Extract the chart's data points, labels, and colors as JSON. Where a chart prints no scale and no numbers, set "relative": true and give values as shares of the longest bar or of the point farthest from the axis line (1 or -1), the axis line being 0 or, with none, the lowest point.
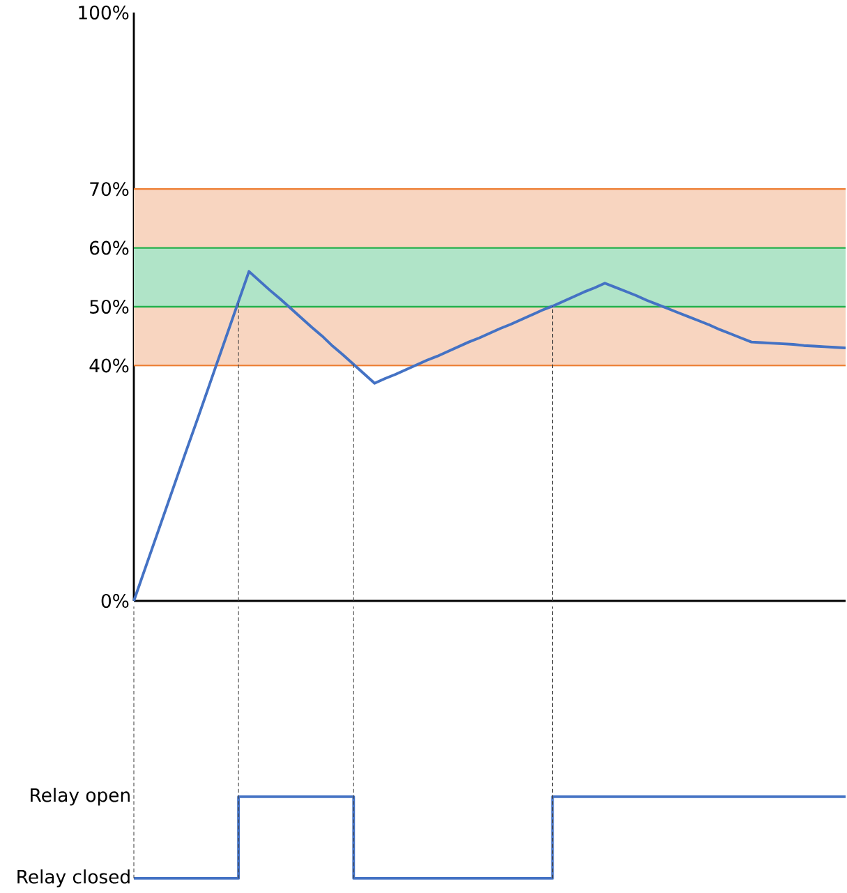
{
  "chart_data": [
    {
      "type": "line",
      "categories": [
        null,
        null,
        null,
        null,
        null,
        null,
        null,
        null,
        null,
        null,
        null,
        null,
        null,
        null,
        null,
        null,
        null,
        null,
        null,
        null,
        null,
        null,
        null,
        null,
        null,
        null,
        null,
        null,
        null,
        null,
        null,
        null,
        null,
        null,
        null,
        null,
        null,
        null,
        null,
        null,
        null,
        null,
        null,
        null,
        null,
        null,
        null,
        null,
        null,
        null,
        null,
        null,
        null,
        null,
        null,
        null,
        null,
        null,
        null,
        null,
        null,
        null,
        null,
        null,
        null,
        null,
        null,
        null,
        null
      ],
      "values": [
        0,
        5.1,
        10.2,
        15.3,
        20.4,
        25.5,
        30.5,
        35.6,
        40.7,
        45.8,
        50.9,
        56,
        54.4,
        52.8,
        51.3,
        49.7,
        48.1,
        46.5,
        45.0,
        43.3,
        41.8,
        40.2,
        38.6,
        37,
        37.8,
        38.5,
        39.3,
        40.1,
        40.9,
        41.6,
        42.4,
        43.2,
        44.0,
        44.7,
        45.5,
        46.3,
        47.0,
        47.8,
        48.6,
        49.4,
        50.1,
        50.9,
        51.7,
        52.5,
        53.2,
        54,
        53.3,
        52.6,
        51.9,
        51.1,
        50.4,
        49.7,
        49.0,
        48.3,
        47.6,
        46.9,
        46.1,
        45.4,
        44.7,
        44,
        43.9,
        43.8,
        43.7,
        43.6,
        43.4,
        43.3,
        43.2,
        43.1,
        43
      ],
      "color": "#4472c4",
      "ylim": [
        0,
        100
      ],
      "yticks": [
        {
          "value": 0,
          "label": "0%"
        },
        {
          "value": 40,
          "label": "40%"
        },
        {
          "value": 50,
          "label": "50%"
        },
        {
          "value": 60,
          "label": "60%"
        },
        {
          "value": 70,
          "label": "70%"
        },
        {
          "value": 100,
          "label": "100%"
        }
      ],
      "tick_labels": "y",
      "bands": [
        {
          "axis": "y",
          "from": 40,
          "to": 70,
          "color": "#f8d5c0"
        },
        {
          "axis": "y",
          "from": 50,
          "to": 60,
          "color": "#b0e4c8"
        }
      ],
      "ref_lines": [
        {
          "axis": "y",
          "value": 40,
          "color": "#ed7d31"
        },
        {
          "axis": "y",
          "value": 70,
          "color": "#ed7d31"
        },
        {
          "axis": "y",
          "value": 50,
          "color": "#22b14c"
        },
        {
          "axis": "y",
          "value": 60,
          "color": "#22b14c"
        }
      ]
    },
    {
      "type": "step",
      "categories": [
        null,
        null,
        null,
        null,
        null,
        null,
        null,
        null,
        null,
        null,
        null,
        null,
        null,
        null,
        null,
        null,
        null,
        null,
        null,
        null,
        null,
        null,
        null,
        null,
        null,
        null,
        null,
        null,
        null,
        null,
        null,
        null,
        null,
        null,
        null,
        null,
        null,
        null,
        null,
        null,
        null,
        null,
        null,
        null,
        null,
        null,
        null,
        null,
        null,
        null,
        null,
        null,
        null,
        null,
        null,
        null,
        null,
        null,
        null,
        null,
        null,
        null,
        null,
        null,
        null,
        null,
        null,
        null,
        null
      ],
      "values": [
        0,
        0,
        0,
        0,
        0,
        0,
        0,
        0,
        0,
        0,
        1,
        1,
        1,
        1,
        1,
        1,
        1,
        1,
        1,
        1,
        1,
        0,
        0,
        0,
        0,
        0,
        0,
        0,
        0,
        0,
        0,
        0,
        0,
        0,
        0,
        0,
        0,
        0,
        0,
        0,
        1,
        1,
        1,
        1,
        1,
        1,
        1,
        1,
        1,
        1,
        1,
        1,
        1,
        1,
        1,
        1,
        1,
        1,
        1,
        1,
        1,
        1,
        1,
        1,
        1,
        1,
        1,
        1,
        1
      ],
      "color": "#4472c4",
      "relative": true,
      "tick_labels": false,
      "grid": "x",
      "annotations": [
        "Relay closed",
        "Relay open"
      ]
    }
  ]
}
